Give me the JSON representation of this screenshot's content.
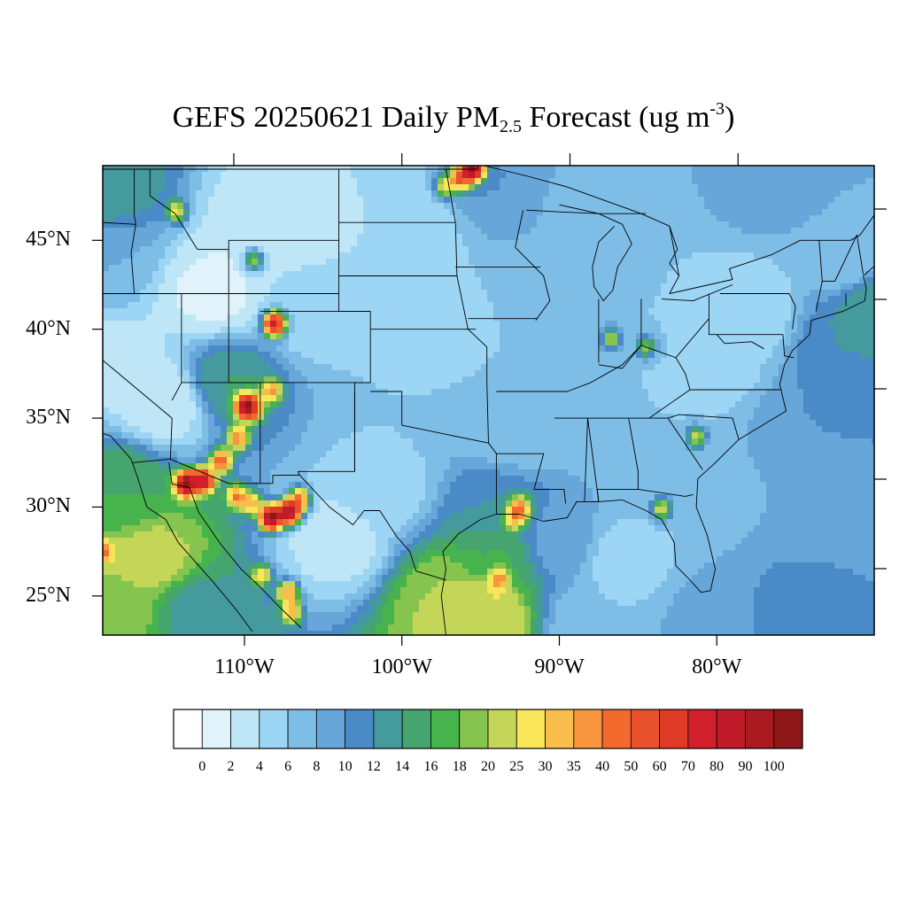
{
  "title": {
    "prefix": "GEFS 20250621 Daily PM",
    "subscript": "2.5",
    "middle": " Forecast (ug m",
    "superscript": "-3",
    "suffix": ")"
  },
  "map": {
    "lon_range": [
      -119,
      -70
    ],
    "lat_range": [
      22.8,
      49.2
    ],
    "lat_labels": [
      {
        "lat": 45,
        "text": "45°N"
      },
      {
        "lat": 40,
        "text": "40°N"
      },
      {
        "lat": 35,
        "text": "35°N"
      },
      {
        "lat": 30,
        "text": "30°N"
      },
      {
        "lat": 25,
        "text": "25°N"
      }
    ],
    "lon_labels": [
      {
        "lon": -110,
        "text": "110°W"
      },
      {
        "lon": -100,
        "text": "100°W"
      },
      {
        "lon": -90,
        "text": "90°W"
      },
      {
        "lon": -80,
        "text": "80°W"
      }
    ]
  },
  "colorbar": {
    "colors": [
      "#ffffff",
      "#e0f3fb",
      "#bfe6f7",
      "#9dd6f4",
      "#7ebde6",
      "#67a6d9",
      "#4a8ac7",
      "#459a9e",
      "#46a46e",
      "#47b34c",
      "#85c44f",
      "#c3d658",
      "#f8e55a",
      "#f8bd4a",
      "#f7963d",
      "#f26a2e",
      "#e9522a",
      "#df3a26",
      "#d21f2c",
      "#bf1b28",
      "#a81a1f",
      "#8f1619"
    ],
    "labels": [
      "0",
      "2",
      "4",
      "6",
      "8",
      "10",
      "12",
      "14",
      "16",
      "18",
      "20",
      "25",
      "30",
      "35",
      "40",
      "50",
      "60",
      "70",
      "80",
      "90",
      "100"
    ]
  },
  "field": {
    "background": [
      {
        "lon": -112,
        "lat": 42,
        "v": 1.5
      },
      {
        "lon": -118,
        "lat": 38,
        "v": 3
      },
      {
        "lon": -115,
        "lat": 36,
        "v": 2
      },
      {
        "lon": -108,
        "lat": 46,
        "v": 2
      },
      {
        "lon": -100,
        "lat": 46,
        "v": 4
      },
      {
        "lon": -106,
        "lat": 41,
        "v": 5
      },
      {
        "lon": -98,
        "lat": 40,
        "v": 5
      },
      {
        "lon": -90,
        "lat": 42,
        "v": 7
      },
      {
        "lon": -85,
        "lat": 40,
        "v": 6
      },
      {
        "lon": -80,
        "lat": 38,
        "v": 5
      },
      {
        "lon": -78,
        "lat": 41,
        "v": 4
      },
      {
        "lon": -72,
        "lat": 44,
        "v": 6
      },
      {
        "lon": -88,
        "lat": 35,
        "v": 6
      },
      {
        "lon": -82,
        "lat": 31,
        "v": 6
      },
      {
        "lon": -86,
        "lat": 27,
        "v": 5
      },
      {
        "lon": -93,
        "lat": 34,
        "v": 7
      },
      {
        "lon": -104,
        "lat": 28,
        "v": 3
      },
      {
        "lon": -101,
        "lat": 31,
        "v": 5
      },
      {
        "lon": -118,
        "lat": 31,
        "v": 16
      },
      {
        "lon": -116,
        "lat": 27,
        "v": 21
      },
      {
        "lon": -118,
        "lat": 24,
        "v": 19
      },
      {
        "lon": -119,
        "lat": 48,
        "v": 14
      },
      {
        "lon": -119,
        "lat": 44,
        "v": 8
      },
      {
        "lon": -113,
        "lat": 24,
        "v": 13
      },
      {
        "lon": -97,
        "lat": 25,
        "v": 20
      },
      {
        "lon": -95,
        "lat": 24,
        "v": 25
      },
      {
        "lon": -94,
        "lat": 27,
        "v": 16
      },
      {
        "lon": -90,
        "lat": 28,
        "v": 9
      },
      {
        "lon": -88,
        "lat": 23.5,
        "v": 6
      },
      {
        "lon": -80,
        "lat": 23.5,
        "v": 9
      },
      {
        "lon": -75,
        "lat": 23,
        "v": 12
      },
      {
        "lon": -72,
        "lat": 26,
        "v": 10
      },
      {
        "lon": -71,
        "lat": 31,
        "v": 8
      },
      {
        "lon": -74,
        "lat": 35,
        "v": 10
      },
      {
        "lon": -70,
        "lat": 36,
        "v": 11
      },
      {
        "lon": -70,
        "lat": 41,
        "v": 14
      },
      {
        "lon": -72,
        "lat": 39,
        "v": 12
      },
      {
        "lon": -70,
        "lat": 48,
        "v": 8
      },
      {
        "lon": -76,
        "lat": 48,
        "v": 9
      },
      {
        "lon": -94,
        "lat": 48.5,
        "v": 10
      },
      {
        "lon": -88,
        "lat": 47,
        "v": 7
      },
      {
        "lon": -111,
        "lat": 37,
        "v": 14
      },
      {
        "lon": -100,
        "lat": 35,
        "v": 6
      },
      {
        "lon": -94,
        "lat": 30,
        "v": 12
      }
    ],
    "plumes": [
      {
        "lon": -113.7,
        "lat": 31.3,
        "v": 100
      },
      {
        "lon": -112.6,
        "lat": 31.5,
        "v": 70
      },
      {
        "lon": -111.5,
        "lat": 32.6,
        "v": 40
      },
      {
        "lon": -110.4,
        "lat": 33.9,
        "v": 30
      },
      {
        "lon": -109.5,
        "lat": 35.5,
        "v": 30
      },
      {
        "lon": -108.3,
        "lat": 36.5,
        "v": 25
      },
      {
        "lon": -110.5,
        "lat": 30.6,
        "v": 30
      },
      {
        "lon": -109.5,
        "lat": 30.2,
        "v": 25
      },
      {
        "lon": -108.3,
        "lat": 29.4,
        "v": 100
      },
      {
        "lon": -107.2,
        "lat": 29.7,
        "v": 90
      },
      {
        "lon": -106.5,
        "lat": 30.4,
        "v": 40
      },
      {
        "lon": -107.2,
        "lat": 25.2,
        "v": 30
      },
      {
        "lon": -107,
        "lat": 24.1,
        "v": 25
      },
      {
        "lon": -108.9,
        "lat": 26.2,
        "v": 16
      },
      {
        "lon": -108.1,
        "lat": 40.3,
        "v": 70
      },
      {
        "lon": -109.9,
        "lat": 35.7,
        "v": 80
      },
      {
        "lon": -95.5,
        "lat": 49,
        "v": 90
      },
      {
        "lon": -96.3,
        "lat": 48.5,
        "v": 40
      },
      {
        "lon": -97.3,
        "lat": 48,
        "v": 18
      },
      {
        "lon": -114.3,
        "lat": 46.6,
        "v": 18
      },
      {
        "lon": -109.4,
        "lat": 43.9,
        "v": 18
      },
      {
        "lon": -92.5,
        "lat": 29.9,
        "v": 30
      },
      {
        "lon": -92.9,
        "lat": 29.3,
        "v": 18
      },
      {
        "lon": -83.5,
        "lat": 29.9,
        "v": 18
      },
      {
        "lon": -81.3,
        "lat": 33.9,
        "v": 16
      },
      {
        "lon": -84.5,
        "lat": 39,
        "v": 14
      },
      {
        "lon": -86.7,
        "lat": 39.5,
        "v": 16
      },
      {
        "lon": -93.9,
        "lat": 25.9,
        "v": 25
      },
      {
        "lon": -119,
        "lat": 27.5,
        "v": 25
      }
    ]
  }
}
